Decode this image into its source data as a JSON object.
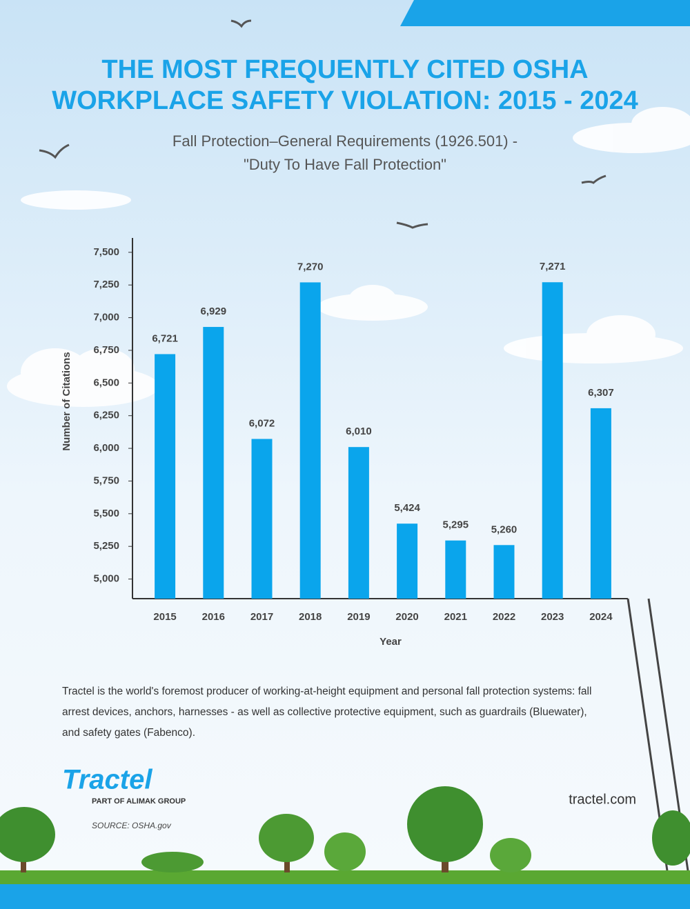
{
  "chart_data": {
    "type": "bar",
    "title": [
      "THE MOST FREQUENTLY CITED OSHA",
      "WORKPLACE SAFETY VIOLATION: 2015 - 2024"
    ],
    "subtitle": [
      "Fall Protection–General Requirements (1926.501) -",
      "\"Duty To Have Fall Protection\""
    ],
    "x_label": "Year",
    "y_label": "Number of Citations",
    "categories": [
      "2015",
      "2016",
      "2017",
      "2018",
      "2019",
      "2020",
      "2021",
      "2022",
      "2023",
      "2024"
    ],
    "values": [
      6721,
      6929,
      6072,
      7270,
      6010,
      5424,
      5295,
      5260,
      7271,
      6307
    ],
    "value_labels": [
      "6,721",
      "6,929",
      "6,072",
      "7,270",
      "6,010",
      "5,424",
      "5,295",
      "5,260",
      "7,271",
      "6,307"
    ],
    "color": "#0aa5ec",
    "ylim": [
      4850,
      7610
    ],
    "yticks": [
      {
        "value": 5000,
        "label": "5,000"
      },
      {
        "value": 5250,
        "label": "5,250"
      },
      {
        "value": 5500,
        "label": "5,500"
      },
      {
        "value": 5750,
        "label": "5,750"
      },
      {
        "value": 6000,
        "label": "6,000"
      },
      {
        "value": 6250,
        "label": "6,250"
      },
      {
        "value": 6500,
        "label": "6,500"
      },
      {
        "value": 6750,
        "label": "6,750"
      },
      {
        "value": 7000,
        "label": "7,000"
      },
      {
        "value": 7250,
        "label": "7,250"
      },
      {
        "value": 7500,
        "label": "7,500"
      }
    ],
    "grid": false
  },
  "footer": {
    "description": "Tractel is the world's foremost producer of working-at-height equipment and personal fall protection systems: fall arrest devices, anchors, harnesses - as well as collective protective equipment, such as guardrails (Bluewater), and safety gates (Fabenco).",
    "logo": "Tractel",
    "logo_tagline": "PART OF ALIMAK GROUP",
    "source": "SOURCE: OSHA.gov",
    "website": "tractel.com"
  }
}
